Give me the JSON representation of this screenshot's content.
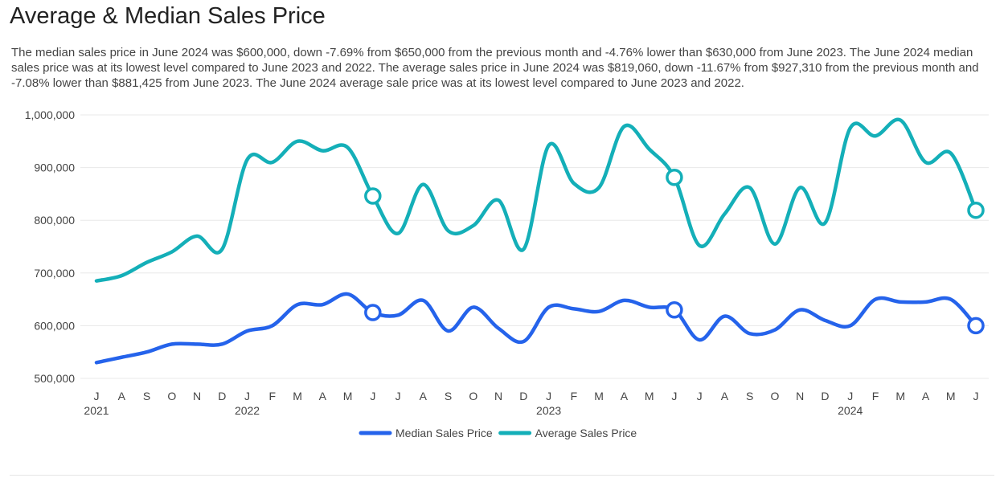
{
  "title": "Average & Median Sales Price",
  "description": "The median sales price in June 2024 was $600,000, down -7.69% from $650,000 from the previous month and -4.76% lower than $630,000 from June 2023. The June 2024 median sales price was at its lowest level compared to June 2023 and 2022. The average sales price in June 2024 was $819,060, down -11.67% from $927,310 from the previous month and -7.08% lower than $881,425 from June 2023. The June 2024 average sale price was at its lowest level compared to June 2023 and 2022.",
  "chart_data": {
    "type": "line",
    "x": [
      "J",
      "A",
      "S",
      "O",
      "N",
      "D",
      "J",
      "F",
      "M",
      "A",
      "M",
      "J",
      "J",
      "A",
      "S",
      "O",
      "N",
      "D",
      "J",
      "F",
      "M",
      "A",
      "M",
      "J",
      "J",
      "A",
      "S",
      "O",
      "N",
      "D",
      "J",
      "F",
      "M",
      "A",
      "M",
      "J"
    ],
    "year_labels": [
      {
        "index": 0,
        "label": "2021"
      },
      {
        "index": 6,
        "label": "2022"
      },
      {
        "index": 18,
        "label": "2023"
      },
      {
        "index": 30,
        "label": "2024"
      }
    ],
    "yticks": [
      500000,
      600000,
      700000,
      800000,
      900000,
      1000000
    ],
    "ytick_labels": [
      "500,000",
      "600,000",
      "700,000",
      "800,000",
      "900,000",
      "1,000,000"
    ],
    "ylim": [
      500000,
      1000000
    ],
    "grid": true,
    "legend": "bottom",
    "highlight_indices": [
      11,
      23,
      35
    ],
    "series": [
      {
        "name": "Median Sales Price",
        "color": "#2563eb",
        "values": [
          530000,
          540000,
          550000,
          565000,
          565000,
          565000,
          590000,
          600000,
          640000,
          640000,
          660000,
          625000,
          620000,
          648000,
          590000,
          635000,
          595000,
          570000,
          635000,
          632000,
          627000,
          648000,
          635000,
          630000,
          573000,
          618000,
          585000,
          592000,
          630000,
          610000,
          600000,
          650000,
          645000,
          645000,
          650000,
          600000
        ]
      },
      {
        "name": "Average Sales Price",
        "color": "#14afb8",
        "values": [
          685000,
          695000,
          720000,
          740000,
          770000,
          745000,
          915000,
          910000,
          950000,
          932000,
          938000,
          846000,
          775000,
          868000,
          780000,
          790000,
          838000,
          745000,
          942000,
          870000,
          862000,
          978000,
          935000,
          881425,
          752000,
          812000,
          862000,
          755000,
          862000,
          795000,
          975000,
          960000,
          990000,
          910000,
          927310,
          819060
        ]
      }
    ]
  }
}
